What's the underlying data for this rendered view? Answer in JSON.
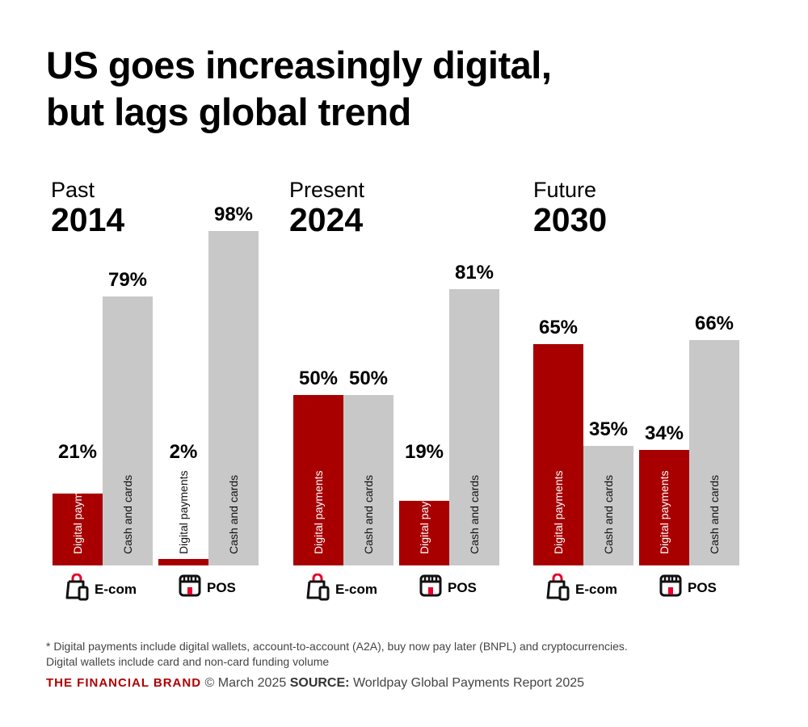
{
  "title_line1": "US goes increasingly digital,",
  "title_line2": "but lags global trend",
  "colors": {
    "digital": "#a80000",
    "cash": "#c8c8c8"
  },
  "chart_data": {
    "type": "bar",
    "ylim": [
      0,
      100
    ],
    "groups": [
      {
        "era": "Past",
        "year": "2014",
        "categories": [
          {
            "name": "E-com",
            "icon": "shopping-bag-phone-icon",
            "digital": 21,
            "cash": 79
          },
          {
            "name": "POS",
            "icon": "storefront-icon",
            "digital": 2,
            "cash": 98
          }
        ]
      },
      {
        "era": "Present",
        "year": "2024",
        "categories": [
          {
            "name": "E-com",
            "icon": "shopping-bag-phone-icon",
            "digital": 50,
            "cash": 50
          },
          {
            "name": "POS",
            "icon": "storefront-icon",
            "digital": 19,
            "cash": 81
          }
        ]
      },
      {
        "era": "Future",
        "year": "2030",
        "categories": [
          {
            "name": "E-com",
            "icon": "shopping-bag-phone-icon",
            "digital": 65,
            "cash": 35
          },
          {
            "name": "POS",
            "icon": "storefront-icon",
            "digital": 34,
            "cash": 66
          }
        ]
      }
    ],
    "series_labels": {
      "digital": "Digital payments",
      "cash": "Cash and cards"
    },
    "value_suffix": "%"
  },
  "footnote_line1": "* Digital payments include digital wallets, account-to-account (A2A), buy now pay later (BNPL) and cryptocurrencies.",
  "footnote_line2": "Digital wallets include card and non-card funding volume",
  "brand": "THE FINANCIAL BRAND",
  "date": "© March 2025",
  "source_label": "SOURCE:",
  "source": "Worldpay Global Payments Report 2025"
}
